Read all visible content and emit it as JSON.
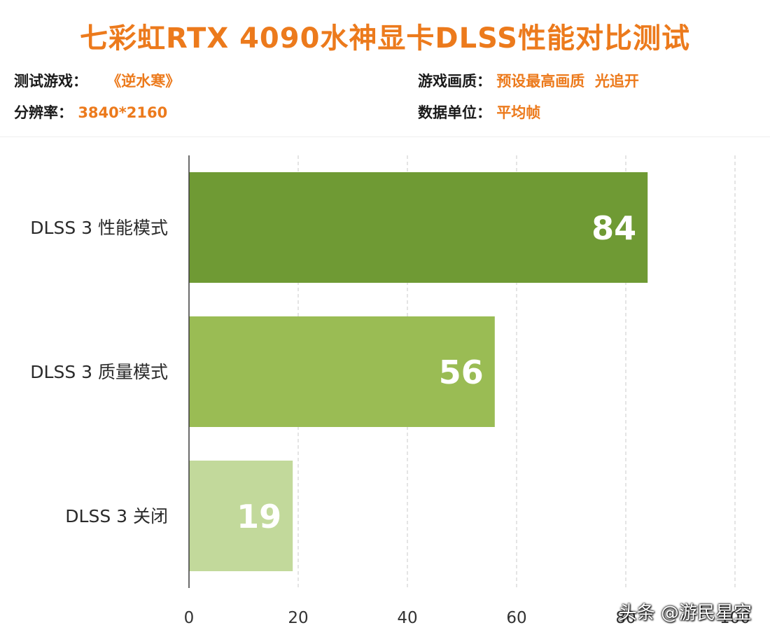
{
  "title": "七彩虹RTX 4090水神显卡DLSS性能对比测试",
  "info": {
    "game_label": "测试游戏：",
    "game_value": "《逆水寒》",
    "resolution_label": "分辨率：",
    "resolution_value": "3840*2160",
    "quality_label": "游戏画质：",
    "quality_value": "预设最高画质  光追开",
    "unit_label": "数据单位：",
    "unit_value": "平均帧"
  },
  "watermark": "头条 @游民星空",
  "chart_data": {
    "type": "bar",
    "orientation": "horizontal",
    "categories": [
      "DLSS 3 性能模式",
      "DLSS 3 质量模式",
      "DLSS 3 关闭"
    ],
    "values": [
      84,
      56,
      19
    ],
    "xlim": [
      0,
      100
    ],
    "xticks": [
      0,
      20,
      40,
      60,
      80,
      100
    ],
    "grid": true,
    "colors": [
      "#6f9a34",
      "#9abc54",
      "#c2d99b"
    ],
    "value_label_color": "#ffffff"
  }
}
